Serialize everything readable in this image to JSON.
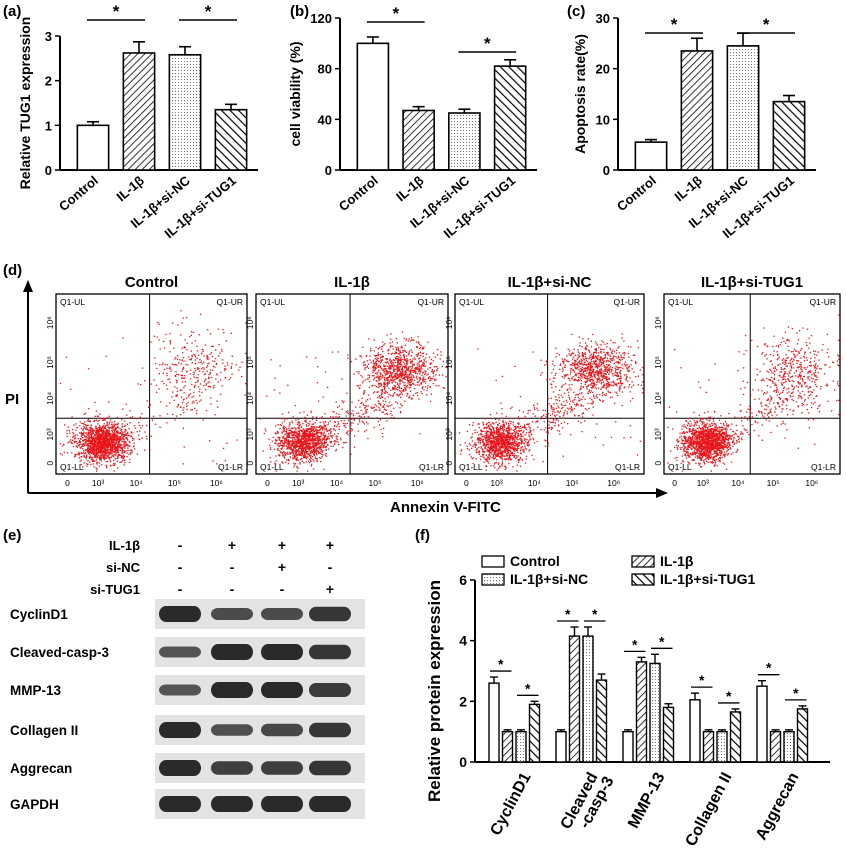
{
  "colors": {
    "dots": "#e8161b",
    "axis": "#000000",
    "band": "#2a2a2a",
    "blot_bg": "#e3e3e3"
  },
  "panels": {
    "a": {
      "label": "(a)",
      "chart_data": {
        "type": "bar",
        "categories": [
          "Control",
          "IL-1β",
          "IL-1β+si-NC",
          "IL-1β+si-TUG1"
        ],
        "values": [
          1.0,
          2.62,
          2.58,
          1.35
        ],
        "errors": [
          0.08,
          0.25,
          0.18,
          0.12
        ],
        "fills": [
          "white",
          "diag-left",
          "dots",
          "diag-right"
        ],
        "ylabel": "Relative TUG1 expression",
        "ylim": [
          0,
          3
        ],
        "yticks": [
          "0",
          "1",
          "2",
          "3"
        ],
        "sig": [
          "*",
          "*"
        ]
      }
    },
    "b": {
      "label": "(b)",
      "chart_data": {
        "type": "bar",
        "categories": [
          "Control",
          "IL-1β",
          "IL-1β+si-NC",
          "IL-1β+si-TUG1"
        ],
        "values": [
          100,
          47,
          45,
          82
        ],
        "errors": [
          5,
          3,
          3,
          5
        ],
        "fills": [
          "white",
          "diag-left",
          "dots",
          "diag-right"
        ],
        "ylabel": "cell viability (%)",
        "ylim": [
          0,
          120
        ],
        "yticks": [
          "0",
          "40",
          "80",
          "120"
        ],
        "sig": [
          "*",
          "*"
        ]
      }
    },
    "c": {
      "label": "(c)",
      "chart_data": {
        "type": "bar",
        "categories": [
          "Control",
          "IL-1β",
          "IL-1β+si-NC",
          "IL-1β+si-TUG1"
        ],
        "values": [
          5.5,
          23.5,
          24.5,
          13.5
        ],
        "errors": [
          0.5,
          2.5,
          2.5,
          1.2
        ],
        "fills": [
          "white",
          "diag-left",
          "dots",
          "diag-right"
        ],
        "ylabel": "Apoptosis rate(%)",
        "ylim": [
          0,
          30
        ],
        "yticks": [
          "0",
          "10",
          "20",
          "30"
        ],
        "sig": [
          "*",
          "*"
        ]
      }
    },
    "d": {
      "label": "(d)",
      "chart_data": {
        "type": "scatter",
        "titles": [
          "Control",
          "IL-1β",
          "IL-1β+si-NC",
          "IL-1β+si-TUG1"
        ],
        "ylabel": "PI",
        "xlabel": "Annexin V-FITC",
        "quadrants": {
          "ul": "Q1-UL",
          "ur": "Q1-UR",
          "ll": "Q1-LL",
          "lr": "Q1-LR"
        },
        "tick_labels": [
          "0",
          "10³",
          "10⁴",
          "10⁵",
          "10⁶"
        ]
      }
    },
    "e": {
      "label": "(e)",
      "treatments": [
        {
          "name": "IL-1β",
          "signs": [
            "-",
            "+",
            "+",
            "+"
          ]
        },
        {
          "name": "si-NC",
          "signs": [
            "-",
            "-",
            "+",
            "-"
          ]
        },
        {
          "name": "si-TUG1",
          "signs": [
            "-",
            "-",
            "-",
            "+"
          ]
        }
      ],
      "blots": [
        {
          "name": "CyclinD1",
          "intensity": [
            1.0,
            0.6,
            0.6,
            0.85
          ]
        },
        {
          "name": "Cleaved-casp-3",
          "intensity": [
            0.5,
            1.0,
            1.0,
            0.85
          ]
        },
        {
          "name": "MMP-13",
          "intensity": [
            0.5,
            1.0,
            1.0,
            0.8
          ]
        },
        {
          "name": "Collagen II",
          "intensity": [
            1.0,
            0.55,
            0.65,
            0.85
          ]
        },
        {
          "name": "Aggrecan",
          "intensity": [
            1.0,
            0.75,
            0.75,
            0.85
          ]
        },
        {
          "name": "GAPDH",
          "intensity": [
            1.0,
            1.0,
            1.0,
            1.0
          ]
        }
      ]
    },
    "f": {
      "label": "(f)",
      "chart_data": {
        "type": "bar",
        "categories": [
          "CyclinD1",
          "Cleaved -casp-3",
          "MMP-13",
          "Collagen II",
          "Aggrecan"
        ],
        "category_lines": [
          [
            "CyclinD1"
          ],
          [
            "Cleaved",
            "-casp-3"
          ],
          [
            "MMP-13"
          ],
          [
            "Collagen II"
          ],
          [
            "Aggrecan"
          ]
        ],
        "series": [
          {
            "name": "Control",
            "fill": "white",
            "values": [
              2.6,
              1.0,
              1.0,
              2.05,
              2.5
            ],
            "errors": [
              0.2,
              0.06,
              0.06,
              0.22,
              0.18
            ]
          },
          {
            "name": "IL-1β",
            "fill": "diag-left",
            "values": [
              1.0,
              4.15,
              3.3,
              1.0,
              1.0
            ],
            "errors": [
              0.06,
              0.3,
              0.15,
              0.06,
              0.06
            ]
          },
          {
            "name": "IL-1β+si-NC",
            "fill": "dots",
            "values": [
              1.0,
              4.15,
              3.25,
              1.0,
              1.0
            ],
            "errors": [
              0.06,
              0.3,
              0.3,
              0.06,
              0.06
            ]
          },
          {
            "name": "IL-1β+si-TUG1",
            "fill": "diag-right",
            "values": [
              1.9,
              2.7,
              1.8,
              1.65,
              1.75
            ],
            "errors": [
              0.1,
              0.2,
              0.12,
              0.1,
              0.1
            ]
          }
        ],
        "ylabel": "Relative protein expression",
        "ylim": [
          0,
          6
        ],
        "yticks": [
          "0",
          "2",
          "4",
          "6"
        ],
        "sig": [
          "*",
          "*"
        ]
      }
    }
  }
}
